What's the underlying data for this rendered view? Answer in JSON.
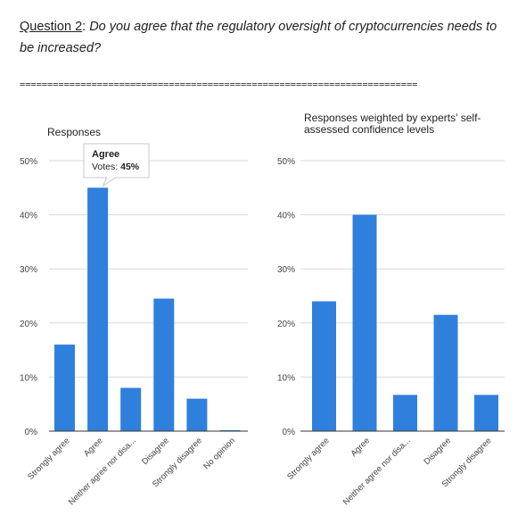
{
  "question": {
    "number": "Question 2",
    "separator": ":",
    "text": " Do you agree that the regulatory oversight of cryptocurrencies needs to be increased?"
  },
  "divider": "========================================================================",
  "chart_data": [
    {
      "type": "bar",
      "title": [
        "Responses"
      ],
      "categories": [
        "Strongly agree",
        "Agree",
        "Neither agree nor disa...",
        "Disagree",
        "Strongly disagree",
        "No opinion"
      ],
      "values": [
        16,
        45,
        8,
        24.5,
        6,
        0
      ],
      "ylim": [
        0,
        50
      ],
      "yticks": [
        "0%",
        "10%",
        "20%",
        "30%",
        "40%",
        "50%"
      ],
      "grid": true,
      "tooltip": {
        "category": "Agree",
        "label": "Votes: ",
        "value": "45%"
      }
    },
    {
      "type": "bar",
      "title": [
        "Responses weighted by experts' self-",
        "assessed confidence levels"
      ],
      "categories": [
        "Strongly agree",
        "Agree",
        "Neither agree nor disa...",
        "Disagree",
        "Strongly disagree"
      ],
      "values": [
        24,
        40,
        6.7,
        21.5,
        6.7
      ],
      "ylim": [
        0,
        50
      ],
      "yticks": [
        "0%",
        "10%",
        "20%",
        "30%",
        "40%",
        "50%"
      ],
      "grid": true
    }
  ],
  "colors": {
    "bar": "#2f80dc",
    "grid": "#d9d9d9",
    "axis": "#333333"
  }
}
